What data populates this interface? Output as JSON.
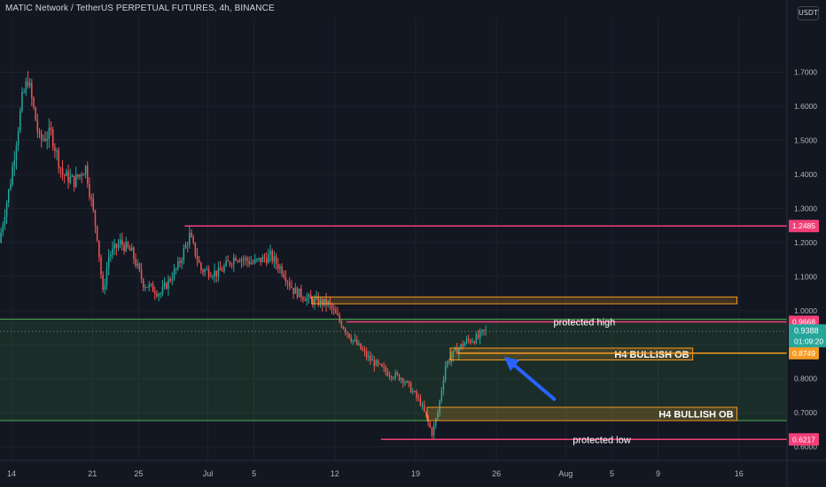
{
  "header": {
    "title": "MATIC Network / TetherUS PERPETUAL FUTURES, 4h, BINANCE",
    "currency_button": "USDT"
  },
  "colors": {
    "background": "#131722",
    "grid": "#1e222d",
    "up_candle": "#26a69a",
    "down_candle": "#ef5350",
    "pink_level": "#f23f78",
    "zone_orange": "#f59a23",
    "green_zone": "#4caf50",
    "arrow": "#2962ff",
    "axis_text": "#b2b5be"
  },
  "chart_data": {
    "type": "candlestick",
    "symbol": "MATIC Network / TetherUS PERPETUAL FUTURES",
    "timeframe": "4h",
    "exchange": "BINANCE",
    "y_axis": {
      "min": 0.56,
      "max": 1.86,
      "ticks": [
        "0.6000",
        "0.7000",
        "0.8000",
        "0.9000",
        "1.0000",
        "1.1000",
        "1.2000",
        "1.3000",
        "1.4000",
        "1.5000",
        "1.6000",
        "1.7000"
      ]
    },
    "x_axis": {
      "start": "2021-06-13T00:00",
      "end": "2021-08-20T04:00",
      "ticks": [
        {
          "label": "14",
          "date": "2021-06-14"
        },
        {
          "label": "21",
          "date": "2021-06-21"
        },
        {
          "label": "25",
          "date": "2021-06-25"
        },
        {
          "label": "Jul",
          "date": "2021-07-01"
        },
        {
          "label": "5",
          "date": "2021-07-05"
        },
        {
          "label": "12",
          "date": "2021-07-12"
        },
        {
          "label": "19",
          "date": "2021-07-19"
        },
        {
          "label": "26",
          "date": "2021-07-26"
        },
        {
          "label": "Aug",
          "date": "2021-08-01"
        },
        {
          "label": "5",
          "date": "2021-08-05"
        },
        {
          "label": "9",
          "date": "2021-08-09"
        },
        {
          "label": "16",
          "date": "2021-08-16"
        }
      ]
    },
    "price_path": [
      {
        "date": "2021-06-13T00:00",
        "price": 1.2
      },
      {
        "date": "2021-06-14T00:00",
        "price": 1.38
      },
      {
        "date": "2021-06-15T00:00",
        "price": 1.62
      },
      {
        "date": "2021-06-15T12:00",
        "price": 1.68
      },
      {
        "date": "2021-06-16T12:00",
        "price": 1.5
      },
      {
        "date": "2021-06-17T12:00",
        "price": 1.52
      },
      {
        "date": "2021-06-18T12:00",
        "price": 1.4
      },
      {
        "date": "2021-06-19T12:00",
        "price": 1.38
      },
      {
        "date": "2021-06-20T12:00",
        "price": 1.42
      },
      {
        "date": "2021-06-21T12:00",
        "price": 1.22
      },
      {
        "date": "2021-06-22T00:00",
        "price": 1.05
      },
      {
        "date": "2021-06-22T12:00",
        "price": 1.16
      },
      {
        "date": "2021-06-23T12:00",
        "price": 1.2
      },
      {
        "date": "2021-06-24T12:00",
        "price": 1.17
      },
      {
        "date": "2021-06-25T12:00",
        "price": 1.08
      },
      {
        "date": "2021-06-27T00:00",
        "price": 1.05
      },
      {
        "date": "2021-06-28T12:00",
        "price": 1.13
      },
      {
        "date": "2021-06-29T12:00",
        "price": 1.22
      },
      {
        "date": "2021-06-30T12:00",
        "price": 1.12
      },
      {
        "date": "2021-07-02T00:00",
        "price": 1.11
      },
      {
        "date": "2021-07-03T12:00",
        "price": 1.16
      },
      {
        "date": "2021-07-05T00:00",
        "price": 1.14
      },
      {
        "date": "2021-07-06T12:00",
        "price": 1.16
      },
      {
        "date": "2021-07-07T12:00",
        "price": 1.12
      },
      {
        "date": "2021-07-08T12:00",
        "price": 1.06
      },
      {
        "date": "2021-07-10T00:00",
        "price": 1.03
      },
      {
        "date": "2021-07-11T12:00",
        "price": 1.02
      },
      {
        "date": "2021-07-12T12:00",
        "price": 0.97
      },
      {
        "date": "2021-07-13T12:00",
        "price": 0.92
      },
      {
        "date": "2021-07-15T00:00",
        "price": 0.86
      },
      {
        "date": "2021-07-16T12:00",
        "price": 0.82
      },
      {
        "date": "2021-07-18T00:00",
        "price": 0.8
      },
      {
        "date": "2021-07-19T12:00",
        "price": 0.73
      },
      {
        "date": "2021-07-20T12:00",
        "price": 0.64
      },
      {
        "date": "2021-07-21T00:00",
        "price": 0.7
      },
      {
        "date": "2021-07-21T16:00",
        "price": 0.84
      },
      {
        "date": "2021-07-22T12:00",
        "price": 0.88
      },
      {
        "date": "2021-07-23T12:00",
        "price": 0.91
      },
      {
        "date": "2021-07-24T12:00",
        "price": 0.92
      },
      {
        "date": "2021-07-25T00:00",
        "price": 0.9388
      }
    ],
    "horizontal_levels": [
      {
        "price": 1.2485,
        "label": "1.2485",
        "color": "#f23f78",
        "start": "2021-06-29T00:00"
      },
      {
        "price": 0.9668,
        "label": "0.9668",
        "color": "#f23f78",
        "text": "protected high",
        "start": "2021-07-13T00:00"
      },
      {
        "price": 0.8749,
        "label": "0.8749",
        "color": "#f59a23",
        "start": "2021-07-22T16:00"
      },
      {
        "price": 0.6217,
        "label": "0.6217",
        "color": "#f23f78",
        "text": "protected low",
        "start": "2021-07-16T00:00"
      }
    ],
    "zones": [
      {
        "from": "2021-07-10T00:00",
        "to": "2021-08-15T20:00",
        "top": 1.04,
        "bottom": 1.02,
        "color": "#f59a23",
        "text": ""
      },
      {
        "from": "2021-07-22T00:00",
        "to": "2021-08-12T00:00",
        "top": 0.89,
        "bottom": 0.855,
        "color": "#f59a23",
        "text": "H4 BULLISH OB"
      },
      {
        "from": "2021-07-20T00:00",
        "to": "2021-08-15T20:00",
        "top": 0.716,
        "bottom": 0.677,
        "color": "#f59a23",
        "text": "H4 BULLISH OB"
      }
    ],
    "green_zone": {
      "top": 0.975,
      "bottom": 0.677,
      "color": "#4caf50"
    },
    "dotted_level": {
      "price": 0.9388
    },
    "current_price": {
      "label": "0.9388",
      "countdown": "01:09:20",
      "color": "#26a69a"
    },
    "arrow": {
      "from_date": "2021-07-31T00:00",
      "from_price": 0.74,
      "to_date": "2021-07-26T16:00",
      "to_price": 0.865,
      "color": "#2962ff"
    }
  }
}
